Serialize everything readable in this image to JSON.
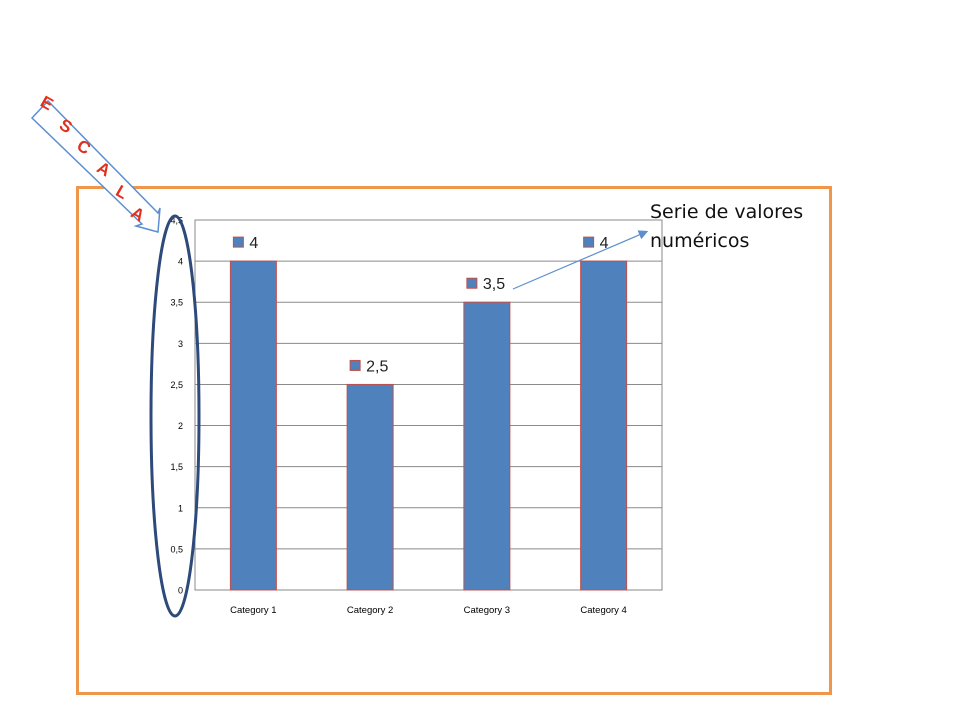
{
  "chart_data": {
    "type": "bar",
    "categories": [
      "Category 1",
      "Category 2",
      "Category 3",
      "Category 4"
    ],
    "values": [
      4,
      2.5,
      3.5,
      4
    ],
    "data_labels": [
      "4",
      "2,5",
      "3,5",
      "4"
    ],
    "ylim": [
      0,
      4.5
    ],
    "yticks": [
      "0",
      "0,5",
      "1",
      "1,5",
      "2",
      "2,5",
      "3",
      "3,5",
      "4",
      "4,5"
    ],
    "grid": true,
    "bar_color": "#4f81bd",
    "bar_border_color": "#c0504d"
  },
  "annotations": {
    "scale_letters": [
      "E",
      "S",
      "C",
      "A",
      "L",
      "A"
    ],
    "scale_letter_color": "#e0301e",
    "series_note": [
      "Serie de valores",
      "numéricos"
    ],
    "frame_color": "#f0964a",
    "ellipse_color": "#2e4a7a",
    "arrow_color": "#5b8fd0"
  }
}
